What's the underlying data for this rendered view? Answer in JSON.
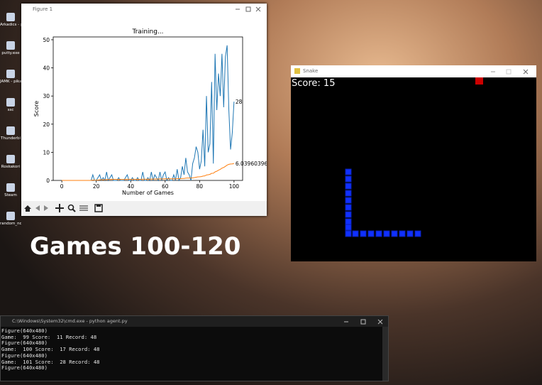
{
  "desktop_icons": [
    "Arkadics - pikakuvak",
    "putty.exe",
    "JAMK - pikakuvak",
    "ssc",
    "Thunderbi",
    "Roskakori",
    "Steam",
    "random_no"
  ],
  "figure_window": {
    "title": "Figure 1"
  },
  "chart_data": {
    "type": "line",
    "title": "Training...",
    "x_label": "Number of Games",
    "y_label": "Score",
    "x": [
      0,
      1,
      2,
      3,
      4,
      5,
      6,
      7,
      8,
      9,
      10,
      11,
      12,
      13,
      14,
      15,
      16,
      17,
      18,
      19,
      20,
      21,
      22,
      23,
      24,
      25,
      26,
      27,
      28,
      29,
      30,
      31,
      32,
      33,
      34,
      35,
      36,
      37,
      38,
      39,
      40,
      41,
      42,
      43,
      44,
      45,
      46,
      47,
      48,
      49,
      50,
      51,
      52,
      53,
      54,
      55,
      56,
      57,
      58,
      59,
      60,
      61,
      62,
      63,
      64,
      65,
      66,
      67,
      68,
      69,
      70,
      71,
      72,
      73,
      74,
      75,
      76,
      77,
      78,
      79,
      80,
      81,
      82,
      83,
      84,
      85,
      86,
      87,
      88,
      89,
      90,
      91,
      92,
      93,
      94,
      95,
      96,
      97,
      98,
      99,
      100
    ],
    "series": [
      {
        "color": "#1f77b4",
        "values": [
          0,
          0,
          0,
          0,
          0,
          0,
          0,
          0,
          0,
          0,
          0,
          0,
          0,
          0,
          0,
          0,
          0,
          0,
          2,
          0,
          0,
          1,
          2,
          0,
          1,
          0,
          3,
          0,
          1,
          2,
          0,
          0,
          0,
          1,
          0,
          0,
          0,
          1,
          2,
          0,
          0,
          1,
          0,
          0,
          1,
          0,
          0,
          3,
          0,
          0,
          1,
          0,
          3,
          0,
          2,
          1,
          0,
          3,
          0,
          2,
          3,
          0,
          1,
          0,
          0,
          2,
          0,
          4,
          0,
          1,
          5,
          2,
          8,
          3,
          2,
          0,
          6,
          8,
          12,
          10,
          4,
          7,
          18,
          5,
          30,
          10,
          13,
          35,
          6,
          45,
          25,
          38,
          30,
          45,
          26,
          44,
          48,
          25,
          11,
          17,
          28
        ]
      },
      {
        "color": "#ff7f0e",
        "values": [
          0,
          0,
          0,
          0,
          0,
          0,
          0,
          0,
          0,
          0,
          0,
          0,
          0,
          0,
          0,
          0,
          0,
          0,
          0.11,
          0.1,
          0.1,
          0.14,
          0.22,
          0.21,
          0.24,
          0.23,
          0.33,
          0.32,
          0.34,
          0.4,
          0.39,
          0.38,
          0.36,
          0.38,
          0.37,
          0.36,
          0.35,
          0.37,
          0.41,
          0.4,
          0.39,
          0.41,
          0.4,
          0.39,
          0.4,
          0.39,
          0.38,
          0.44,
          0.43,
          0.42,
          0.43,
          0.42,
          0.47,
          0.46,
          0.49,
          0.5,
          0.49,
          0.53,
          0.53,
          0.55,
          0.59,
          0.58,
          0.59,
          0.58,
          0.57,
          0.59,
          0.58,
          0.63,
          0.62,
          0.63,
          0.69,
          0.71,
          0.81,
          0.84,
          0.85,
          0.84,
          0.91,
          1.0,
          1.14,
          1.25,
          1.28,
          1.35,
          1.55,
          1.6,
          1.93,
          2.02,
          2.15,
          2.52,
          2.56,
          3.03,
          3.28,
          3.65,
          3.94,
          4.37,
          4.6,
          5.01,
          5.45,
          5.71,
          5.83,
          5.88,
          6.04
        ]
      }
    ],
    "annotations": [
      "28",
      "6.039603960"
    ],
    "xlim": [
      -5,
      105
    ],
    "ylim": [
      0,
      51
    ],
    "xticks": [
      0,
      20,
      40,
      60,
      80,
      100
    ],
    "yticks": [
      0,
      10,
      20,
      30,
      40,
      50
    ]
  },
  "snake_window": {
    "title": "Snake",
    "score_text": "Score: 15"
  },
  "overlay_text": "Games 100-120",
  "terminal": {
    "title": "C:\\Windows\\System32\\cmd.exe - python  agent.py",
    "lines": [
      "Figure(640x480)",
      "Game:  99 Score:  11 Record: 48",
      "Figure(640x480)",
      "Game:  100 Score:  17 Record: 48",
      "Figure(640x480)",
      "Game:  101 Score:  28 Record: 48",
      "Figure(640x480)"
    ]
  }
}
